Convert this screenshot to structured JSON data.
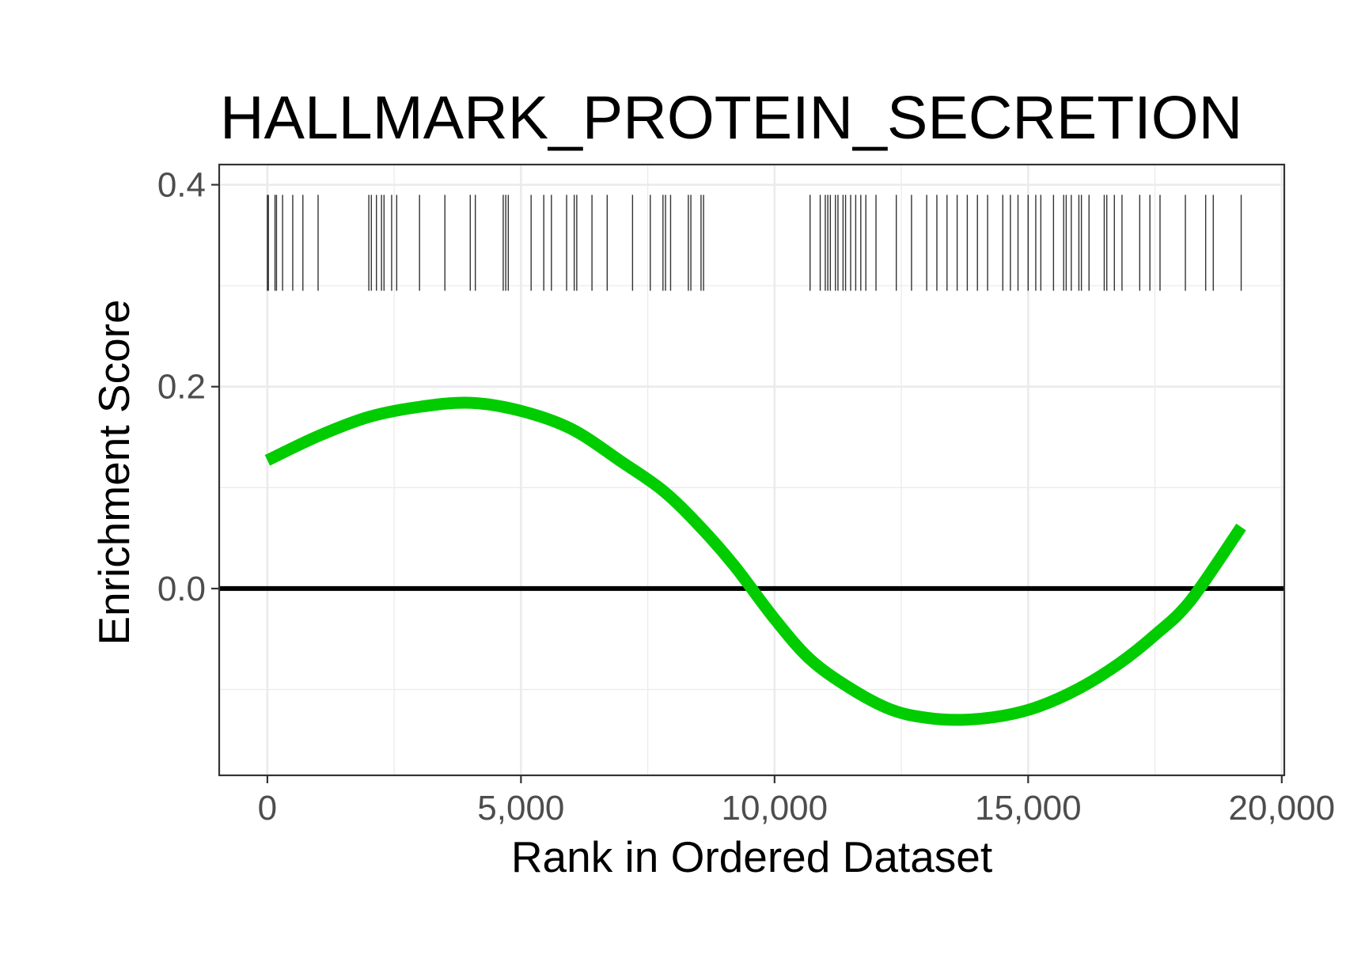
{
  "chart_data": {
    "type": "line",
    "title": "HALLMARK_PROTEIN_SECRETION",
    "xlabel": "Rank in Ordered Dataset",
    "ylabel": "Enrichment Score",
    "xlim": [
      -950,
      20050
    ],
    "ylim": [
      -0.185,
      0.42
    ],
    "x_ticks": [
      0,
      5000,
      10000,
      15000,
      20000
    ],
    "x_tick_labels": [
      "0",
      "5,000",
      "10,000",
      "15,000",
      "20,000"
    ],
    "y_ticks": [
      0.0,
      0.2,
      0.4
    ],
    "y_tick_labels": [
      "0.0",
      "0.2",
      "0.4"
    ],
    "y_minor_ticks": [
      -0.1,
      0.1,
      0.3
    ],
    "x_minor_ticks": [
      2500,
      7500,
      12500,
      17500
    ],
    "grid": true,
    "zero_line": 0,
    "colors": {
      "curve": "#00cc00",
      "ticks": "#333333",
      "zero_line": "#000000",
      "grid": "#ebebeb",
      "panel_border": "#333333"
    },
    "series": [
      {
        "x": [
          0,
          1000,
          2000,
          3000,
          4000,
          5000,
          6000,
          7000,
          7800,
          8500,
          9200,
          10000,
          10700,
          11500,
          12300,
          13000,
          13700,
          14500,
          15200,
          16000,
          16800,
          17500,
          18200,
          19200
        ],
        "values": [
          0.127,
          0.151,
          0.17,
          0.18,
          0.184,
          0.176,
          0.158,
          0.125,
          0.097,
          0.063,
          0.023,
          -0.03,
          -0.07,
          -0.099,
          -0.12,
          -0.128,
          -0.13,
          -0.126,
          -0.117,
          -0.099,
          -0.074,
          -0.046,
          -0.012,
          0.061
        ]
      }
    ],
    "gene_hits": [
      0,
      20,
      150,
      180,
      300,
      500,
      700,
      1000,
      2000,
      2050,
      2150,
      2250,
      2300,
      2450,
      2550,
      3000,
      3500,
      4000,
      4100,
      4650,
      4700,
      4750,
      5200,
      5450,
      5600,
      5900,
      6050,
      6100,
      6400,
      6700,
      7200,
      7550,
      7800,
      7850,
      7950,
      8300,
      8350,
      8550,
      8600,
      10700,
      10900,
      11000,
      11050,
      11100,
      11200,
      11250,
      11350,
      11400,
      11500,
      11600,
      11700,
      11800,
      12000,
      12400,
      12700,
      13000,
      13200,
      13400,
      13600,
      13800,
      14000,
      14200,
      14500,
      14650,
      14800,
      15000,
      15150,
      15250,
      15500,
      15700,
      15750,
      15850,
      16000,
      16050,
      16200,
      16500,
      16550,
      16700,
      16850,
      17200,
      17400,
      17600,
      18100,
      18500,
      18650,
      19200
    ]
  }
}
